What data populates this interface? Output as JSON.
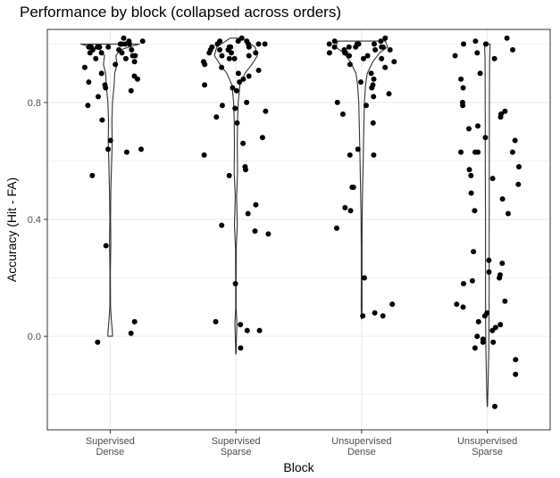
{
  "chart_data": {
    "type": "violin-jitter",
    "title": "Performance by block (collapsed across orders)",
    "xlabel": "Block",
    "ylabel": "Accuracy (Hit - FA)",
    "ylim": [
      -0.32,
      1.05
    ],
    "yticks": [
      0.0,
      0.4,
      0.8
    ],
    "ytick_labels": [
      "0.0",
      "0.4",
      "0.8"
    ],
    "grid": true,
    "categories": [
      {
        "line1": "Supervised",
        "line2": "Dense"
      },
      {
        "line1": "Supervised",
        "line2": "Sparse"
      },
      {
        "line1": "Unsupervised",
        "line2": "Dense"
      },
      {
        "line1": "Unsupervised",
        "line2": "Sparse"
      }
    ],
    "colors": {
      "points": "#000000",
      "violin": "#333333",
      "grid": "#ebebeb",
      "panel_border": "#333333"
    },
    "series": [
      {
        "values": [
          1.0,
          0.99,
          0.98,
          1.01,
          0.97,
          1.0,
          0.99,
          0.96,
          1.02,
          0.98,
          0.95,
          0.99,
          1.0,
          0.97,
          0.93,
          0.98,
          0.99,
          1.01,
          0.94,
          0.96,
          0.92,
          0.99,
          1.0,
          0.97,
          0.95,
          0.9,
          0.88,
          0.89,
          0.86,
          0.85,
          0.84,
          0.87,
          0.79,
          0.82,
          0.74,
          0.67,
          0.64,
          0.64,
          0.63,
          0.55,
          0.31,
          0.05,
          0.01,
          -0.02
        ],
        "violin": [
          {
            "y": 1.0,
            "w": 0.52
          },
          {
            "y": 0.99,
            "w": 0.34
          },
          {
            "y": 0.98,
            "w": 0.18
          },
          {
            "y": 0.96,
            "w": 0.1
          },
          {
            "y": 0.93,
            "w": 0.12
          },
          {
            "y": 0.9,
            "w": 0.08
          },
          {
            "y": 0.86,
            "w": 0.07
          },
          {
            "y": 0.8,
            "w": 0.04
          },
          {
            "y": 0.74,
            "w": 0.03
          },
          {
            "y": 0.66,
            "w": 0.035
          },
          {
            "y": 0.6,
            "w": 0.025
          },
          {
            "y": 0.5,
            "w": 0.012
          },
          {
            "y": 0.4,
            "w": 0.006
          },
          {
            "y": 0.32,
            "w": 0.012
          },
          {
            "y": 0.22,
            "w": 0.004
          },
          {
            "y": 0.1,
            "w": 0.006
          },
          {
            "y": 0.06,
            "w": 0.02
          },
          {
            "y": 0.01,
            "w": 0.04
          },
          {
            "y": 0.0,
            "w": 0.04
          }
        ]
      },
      {
        "values": [
          1.01,
          1.0,
          0.99,
          0.98,
          1.02,
          0.97,
          1.0,
          0.99,
          0.96,
          1.01,
          0.98,
          0.95,
          0.99,
          1.0,
          0.97,
          0.93,
          0.98,
          0.99,
          1.01,
          0.94,
          0.96,
          0.92,
          0.99,
          1.0,
          0.97,
          0.95,
          0.9,
          0.91,
          0.88,
          0.89,
          0.86,
          0.87,
          0.85,
          0.84,
          0.8,
          0.79,
          0.78,
          0.77,
          0.75,
          0.73,
          0.68,
          0.66,
          0.62,
          0.58,
          0.57,
          0.55,
          0.45,
          0.42,
          0.38,
          0.36,
          0.35,
          0.18,
          0.05,
          0.04,
          0.02,
          0.02,
          -0.04
        ],
        "violin": [
          {
            "y": 1.02,
            "w": 0.1
          },
          {
            "y": 0.99,
            "w": 0.34
          },
          {
            "y": 0.96,
            "w": 0.38
          },
          {
            "y": 0.93,
            "w": 0.28
          },
          {
            "y": 0.9,
            "w": 0.16
          },
          {
            "y": 0.86,
            "w": 0.07
          },
          {
            "y": 0.8,
            "w": 0.04
          },
          {
            "y": 0.74,
            "w": 0.03
          },
          {
            "y": 0.66,
            "w": 0.025
          },
          {
            "y": 0.56,
            "w": 0.03
          },
          {
            "y": 0.48,
            "w": 0.012
          },
          {
            "y": 0.38,
            "w": 0.025
          },
          {
            "y": 0.3,
            "w": 0.006
          },
          {
            "y": 0.2,
            "w": 0.005
          },
          {
            "y": 0.1,
            "w": 0.004
          },
          {
            "y": 0.04,
            "w": 0.018
          },
          {
            "y": 0.0,
            "w": 0.01
          },
          {
            "y": -0.06,
            "w": 0.003
          }
        ]
      },
      {
        "values": [
          1.0,
          0.99,
          0.98,
          1.01,
          0.97,
          1.0,
          0.99,
          0.96,
          1.02,
          0.98,
          0.95,
          0.99,
          1.0,
          0.97,
          0.93,
          0.98,
          0.99,
          1.01,
          0.94,
          0.96,
          0.92,
          0.99,
          1.0,
          0.97,
          0.95,
          0.9,
          0.88,
          0.86,
          0.87,
          0.85,
          0.83,
          0.82,
          0.8,
          0.79,
          0.76,
          0.73,
          0.64,
          0.62,
          0.62,
          0.51,
          0.51,
          0.44,
          0.43,
          0.37,
          0.2,
          0.11,
          0.08,
          0.07,
          0.07
        ],
        "violin": [
          {
            "y": 1.01,
            "w": 0.42
          },
          {
            "y": 0.99,
            "w": 0.46
          },
          {
            "y": 0.97,
            "w": 0.32
          },
          {
            "y": 0.94,
            "w": 0.2
          },
          {
            "y": 0.9,
            "w": 0.1
          },
          {
            "y": 0.86,
            "w": 0.07
          },
          {
            "y": 0.8,
            "w": 0.05
          },
          {
            "y": 0.72,
            "w": 0.04
          },
          {
            "y": 0.62,
            "w": 0.03
          },
          {
            "y": 0.52,
            "w": 0.02
          },
          {
            "y": 0.42,
            "w": 0.01
          },
          {
            "y": 0.3,
            "w": 0.006
          },
          {
            "y": 0.2,
            "w": 0.006
          },
          {
            "y": 0.1,
            "w": 0.008
          },
          {
            "y": 0.06,
            "w": 0.005
          }
        ]
      },
      {
        "values": [
          1.02,
          1.01,
          1.0,
          1.0,
          1.0,
          0.98,
          0.97,
          0.96,
          0.95,
          0.9,
          0.88,
          0.85,
          0.8,
          0.79,
          0.77,
          0.76,
          0.75,
          0.72,
          0.71,
          0.68,
          0.67,
          0.63,
          0.63,
          0.63,
          0.63,
          0.58,
          0.57,
          0.55,
          0.54,
          0.52,
          0.49,
          0.47,
          0.43,
          0.42,
          0.29,
          0.26,
          0.25,
          0.22,
          0.21,
          0.2,
          0.19,
          0.18,
          0.12,
          0.11,
          0.1,
          0.08,
          0.07,
          0.05,
          0.04,
          0.03,
          0.02,
          0.0,
          -0.01,
          -0.02,
          -0.02,
          -0.04,
          -0.08,
          -0.13,
          -0.24
        ],
        "violin": [
          {
            "y": 1.0,
            "w": 0.05
          },
          {
            "y": 0.95,
            "w": 0.04
          },
          {
            "y": 0.85,
            "w": 0.038
          },
          {
            "y": 0.75,
            "w": 0.036
          },
          {
            "y": 0.65,
            "w": 0.036
          },
          {
            "y": 0.55,
            "w": 0.035
          },
          {
            "y": 0.45,
            "w": 0.034
          },
          {
            "y": 0.35,
            "w": 0.032
          },
          {
            "y": 0.25,
            "w": 0.032
          },
          {
            "y": 0.15,
            "w": 0.032
          },
          {
            "y": 0.05,
            "w": 0.03
          },
          {
            "y": -0.05,
            "w": 0.026
          },
          {
            "y": -0.15,
            "w": 0.015
          },
          {
            "y": -0.22,
            "w": 0.006
          },
          {
            "y": -0.24,
            "w": 0.002
          }
        ]
      }
    ]
  }
}
